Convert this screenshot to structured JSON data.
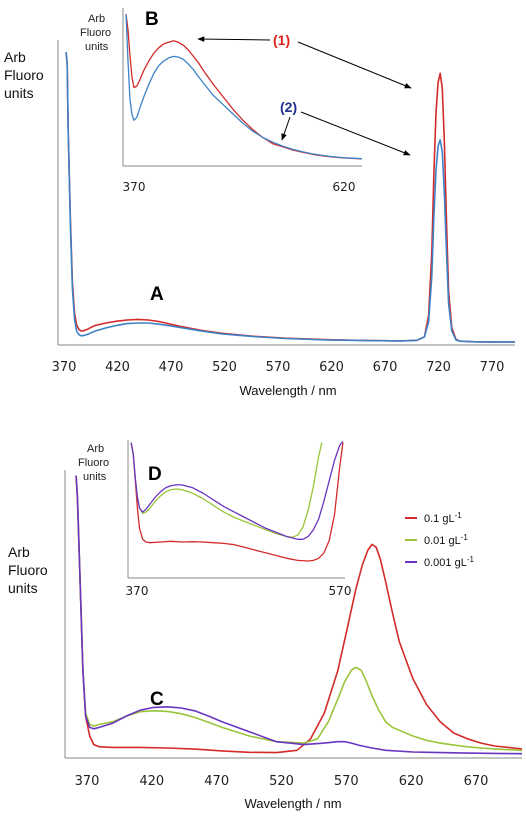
{
  "colors": {
    "red": "#d42a2a",
    "blue": "#3c82c6",
    "green": "#9ac43a",
    "purple": "#6a35c0",
    "axis": "#888888",
    "arrow": "#000000",
    "callout1": "#e0201a",
    "callout2": "#1f2f8a"
  },
  "chart_data": [
    {
      "id": "A",
      "type": "line",
      "panel_label": "A",
      "ylabel": [
        "Arb",
        "Fluoro",
        "units"
      ],
      "xlabel": "Wavelength / nm",
      "xticks": [
        370,
        420,
        470,
        520,
        570,
        620,
        670,
        720,
        770
      ],
      "xlim": [
        370,
        798
      ],
      "ylim": [
        0,
        1
      ],
      "series": [
        {
          "name": "(1)",
          "color": "red",
          "x": [
            372,
            373,
            374,
            376,
            378,
            380,
            382,
            384,
            386,
            388,
            392,
            396,
            400,
            410,
            420,
            430,
            440,
            450,
            460,
            470,
            480,
            500,
            520,
            550,
            580,
            620,
            660,
            690,
            705,
            712,
            716,
            719,
            721,
            723,
            725,
            727,
            729,
            731,
            733,
            735,
            738,
            742,
            746,
            760,
            780,
            798
          ],
          "y": [
            0.96,
            0.92,
            0.7,
            0.42,
            0.2,
            0.1,
            0.06,
            0.045,
            0.04,
            0.04,
            0.045,
            0.052,
            0.058,
            0.066,
            0.072,
            0.076,
            0.078,
            0.076,
            0.071,
            0.063,
            0.055,
            0.042,
            0.032,
            0.022,
            0.016,
            0.011,
            0.008,
            0.007,
            0.009,
            0.02,
            0.09,
            0.3,
            0.56,
            0.76,
            0.86,
            0.89,
            0.84,
            0.66,
            0.4,
            0.17,
            0.05,
            0.012,
            0.006,
            0.004,
            0.003,
            0.003
          ]
        },
        {
          "name": "(2)",
          "color": "blue",
          "x": [
            372,
            373,
            374,
            376,
            378,
            380,
            382,
            384,
            386,
            388,
            392,
            396,
            400,
            410,
            420,
            430,
            440,
            450,
            460,
            470,
            480,
            500,
            520,
            550,
            580,
            620,
            660,
            690,
            705,
            712,
            716,
            719,
            721,
            723,
            725,
            727,
            729,
            731,
            733,
            735,
            738,
            742,
            746,
            760,
            780,
            798
          ],
          "y": [
            0.96,
            0.92,
            0.7,
            0.4,
            0.18,
            0.08,
            0.04,
            0.028,
            0.024,
            0.024,
            0.028,
            0.034,
            0.04,
            0.05,
            0.058,
            0.064,
            0.066,
            0.066,
            0.062,
            0.057,
            0.051,
            0.04,
            0.03,
            0.021,
            0.015,
            0.01,
            0.008,
            0.007,
            0.009,
            0.02,
            0.07,
            0.22,
            0.42,
            0.57,
            0.65,
            0.67,
            0.63,
            0.49,
            0.3,
            0.13,
            0.04,
            0.01,
            0.006,
            0.004,
            0.003,
            0.003
          ]
        }
      ]
    },
    {
      "id": "B",
      "type": "line",
      "panel_label": "B",
      "ylabel": [
        "Arb",
        "Fluoro",
        "units"
      ],
      "xticks": [
        370,
        620
      ],
      "xlim": [
        370,
        610
      ],
      "ylim": [
        0,
        1
      ],
      "callouts": [
        "(1)",
        "(2)"
      ],
      "series": [
        {
          "name": "(1)",
          "color": "red",
          "x": [
            372,
            374,
            376,
            378,
            380,
            383,
            386,
            390,
            395,
            400,
            405,
            410,
            415,
            420,
            425,
            430,
            435,
            440,
            445,
            450,
            460,
            470,
            480,
            490,
            500,
            510,
            520,
            530,
            540,
            550,
            560,
            570,
            580,
            590,
            600,
            610
          ],
          "y": [
            0.96,
            0.86,
            0.7,
            0.56,
            0.49,
            0.5,
            0.54,
            0.6,
            0.66,
            0.71,
            0.745,
            0.77,
            0.78,
            0.79,
            0.78,
            0.76,
            0.73,
            0.69,
            0.65,
            0.6,
            0.51,
            0.43,
            0.35,
            0.28,
            0.22,
            0.17,
            0.13,
            0.11,
            0.09,
            0.075,
            0.062,
            0.052,
            0.045,
            0.04,
            0.036,
            0.033
          ]
        },
        {
          "name": "(2)",
          "color": "blue",
          "x": [
            372,
            374,
            376,
            378,
            380,
            383,
            386,
            390,
            395,
            400,
            405,
            410,
            415,
            420,
            425,
            430,
            435,
            440,
            445,
            450,
            460,
            470,
            480,
            490,
            500,
            510,
            520,
            530,
            540,
            550,
            560,
            570,
            580,
            590,
            600,
            610
          ],
          "y": [
            0.96,
            0.66,
            0.42,
            0.32,
            0.28,
            0.3,
            0.36,
            0.43,
            0.51,
            0.58,
            0.63,
            0.66,
            0.68,
            0.69,
            0.685,
            0.67,
            0.64,
            0.605,
            0.56,
            0.52,
            0.44,
            0.38,
            0.32,
            0.26,
            0.21,
            0.17,
            0.14,
            0.115,
            0.095,
            0.078,
            0.065,
            0.055,
            0.047,
            0.041,
            0.037,
            0.034
          ]
        }
      ]
    },
    {
      "id": "C",
      "type": "line",
      "panel_label": "C",
      "ylabel": [
        "Arb",
        "Fluoro",
        "units"
      ],
      "xlabel": "Wavelength / nm",
      "xticks": [
        370,
        420,
        470,
        520,
        570,
        620,
        670
      ],
      "xlim": [
        370,
        700
      ],
      "ylim": [
        0,
        1
      ],
      "series": [
        {
          "name": "0.1 gL",
          "sup": "-1",
          "color": "red",
          "x": [
            373,
            374,
            376,
            378,
            380,
            383,
            386,
            390,
            400,
            420,
            440,
            460,
            480,
            500,
            520,
            535,
            545,
            555,
            565,
            572,
            578,
            583,
            587,
            590,
            593,
            596,
            600,
            605,
            610,
            620,
            630,
            640,
            650,
            660,
            670,
            680,
            690,
            700
          ],
          "y": [
            0.98,
            0.9,
            0.6,
            0.3,
            0.14,
            0.07,
            0.04,
            0.032,
            0.03,
            0.03,
            0.028,
            0.024,
            0.018,
            0.013,
            0.012,
            0.02,
            0.06,
            0.15,
            0.3,
            0.45,
            0.58,
            0.67,
            0.72,
            0.74,
            0.73,
            0.69,
            0.61,
            0.5,
            0.4,
            0.27,
            0.18,
            0.12,
            0.08,
            0.06,
            0.045,
            0.035,
            0.03,
            0.025
          ]
        },
        {
          "name": "0.01 gL",
          "sup": "-1",
          "color": "green",
          "x": [
            373,
            374,
            376,
            378,
            380,
            383,
            386,
            390,
            400,
            410,
            420,
            430,
            440,
            450,
            460,
            470,
            480,
            500,
            520,
            540,
            550,
            558,
            565,
            570,
            575,
            578,
            582,
            586,
            590,
            595,
            600,
            605,
            610,
            620,
            630,
            640,
            650,
            660,
            670,
            680,
            690,
            700
          ],
          "y": [
            0.98,
            0.9,
            0.6,
            0.3,
            0.15,
            0.11,
            0.105,
            0.11,
            0.12,
            0.14,
            0.155,
            0.158,
            0.156,
            0.148,
            0.135,
            0.118,
            0.1,
            0.07,
            0.05,
            0.045,
            0.06,
            0.12,
            0.2,
            0.26,
            0.3,
            0.31,
            0.3,
            0.26,
            0.21,
            0.16,
            0.12,
            0.1,
            0.09,
            0.07,
            0.055,
            0.045,
            0.038,
            0.032,
            0.028,
            0.025,
            0.022,
            0.02
          ]
        },
        {
          "name": "0.001 gL",
          "sup": "-1",
          "color": "purple",
          "x": [
            373,
            374,
            376,
            378,
            380,
            383,
            386,
            390,
            400,
            410,
            420,
            430,
            440,
            450,
            460,
            470,
            480,
            500,
            520,
            540,
            555,
            565,
            570,
            575,
            580,
            590,
            600,
            620,
            640,
            660,
            680,
            700
          ],
          "y": [
            0.98,
            0.9,
            0.6,
            0.3,
            0.14,
            0.1,
            0.095,
            0.1,
            0.115,
            0.14,
            0.16,
            0.17,
            0.172,
            0.168,
            0.158,
            0.14,
            0.12,
            0.085,
            0.05,
            0.04,
            0.045,
            0.05,
            0.05,
            0.045,
            0.038,
            0.028,
            0.02,
            0.014,
            0.012,
            0.01,
            0.009,
            0.008
          ]
        }
      ],
      "legend": {
        "position": "top-right"
      }
    },
    {
      "id": "D",
      "type": "line",
      "panel_label": "D",
      "ylabel": [
        "Arb",
        "Fluoro",
        "units"
      ],
      "xticks": [
        370,
        570
      ],
      "xlim": [
        370,
        575
      ],
      "ylim": [
        0,
        1
      ],
      "series": [
        {
          "name": "0.1 gL",
          "color": "red",
          "x": [
            372,
            374,
            376,
            378,
            380,
            383,
            386,
            390,
            400,
            410,
            420,
            430,
            440,
            450,
            460,
            470,
            480,
            490,
            500,
            510,
            520,
            530,
            540,
            545,
            550,
            555,
            560,
            565,
            570,
            573
          ],
          "y": [
            0.98,
            0.9,
            0.7,
            0.5,
            0.35,
            0.27,
            0.25,
            0.245,
            0.25,
            0.255,
            0.25,
            0.252,
            0.25,
            0.245,
            0.24,
            0.23,
            0.21,
            0.19,
            0.17,
            0.15,
            0.13,
            0.115,
            0.11,
            0.115,
            0.13,
            0.17,
            0.26,
            0.45,
            0.8,
            0.98
          ]
        },
        {
          "name": "0.01 gL",
          "color": "green",
          "x": [
            372,
            374,
            376,
            378,
            380,
            383,
            386,
            390,
            395,
            400,
            405,
            410,
            415,
            420,
            430,
            440,
            450,
            460,
            470,
            480,
            490,
            500,
            510,
            520,
            525,
            530,
            535,
            540,
            545,
            550,
            553
          ],
          "y": [
            0.98,
            0.9,
            0.72,
            0.58,
            0.5,
            0.46,
            0.47,
            0.5,
            0.55,
            0.59,
            0.62,
            0.635,
            0.64,
            0.635,
            0.61,
            0.57,
            0.52,
            0.47,
            0.43,
            0.4,
            0.37,
            0.34,
            0.31,
            0.29,
            0.285,
            0.3,
            0.36,
            0.48,
            0.66,
            0.88,
            0.98
          ]
        },
        {
          "name": "0.001 gL",
          "color": "purple",
          "x": [
            372,
            374,
            376,
            378,
            380,
            383,
            386,
            390,
            395,
            400,
            405,
            410,
            415,
            420,
            430,
            440,
            450,
            460,
            470,
            480,
            490,
            500,
            510,
            520,
            530,
            535,
            540,
            545,
            550,
            555,
            560,
            565,
            570,
            573
          ],
          "y": [
            0.98,
            0.9,
            0.72,
            0.58,
            0.5,
            0.47,
            0.49,
            0.53,
            0.58,
            0.62,
            0.65,
            0.665,
            0.67,
            0.67,
            0.65,
            0.61,
            0.56,
            0.51,
            0.47,
            0.43,
            0.39,
            0.35,
            0.32,
            0.29,
            0.27,
            0.27,
            0.29,
            0.34,
            0.42,
            0.55,
            0.7,
            0.85,
            0.96,
            0.99
          ]
        }
      ]
    }
  ]
}
